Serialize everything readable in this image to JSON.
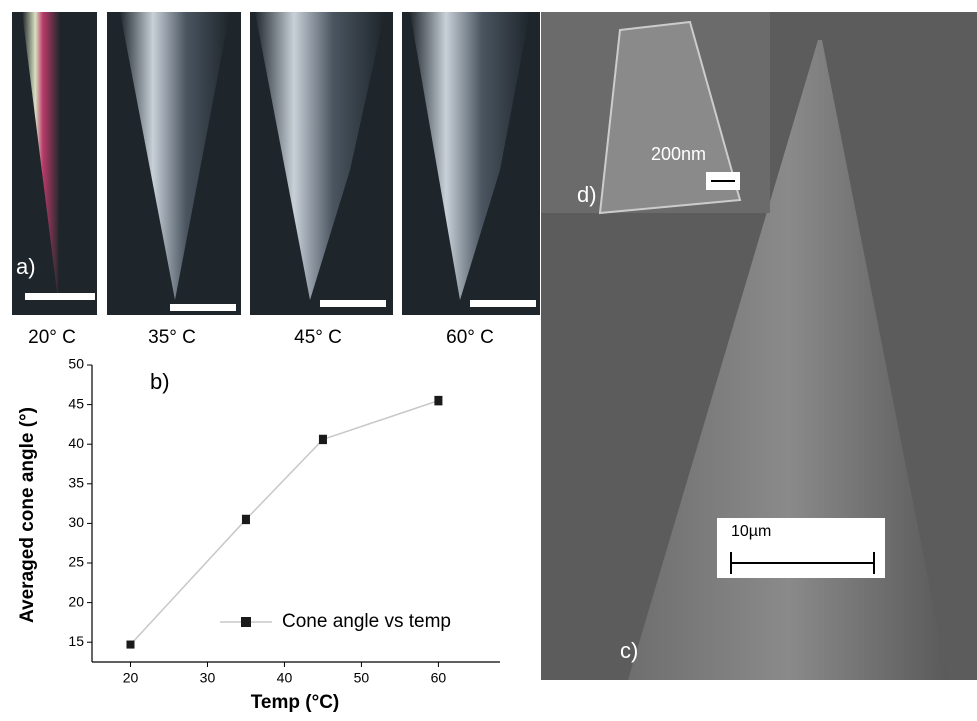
{
  "figure": {
    "panel_a": {
      "label": "a)",
      "temps": [
        "20° C",
        "35° C",
        "45° C",
        "60° C"
      ]
    },
    "panel_c": {
      "label": "c)",
      "scale": "10µm"
    },
    "panel_d": {
      "label": "d)",
      "scale": "200nm"
    }
  },
  "chart_data": {
    "type": "line",
    "panel_label": "b)",
    "x_label": "Temp (°C)",
    "y_label": "Averaged cone angle (°)",
    "x": [
      20,
      35,
      45,
      60
    ],
    "series": [
      {
        "name": "Cone angle vs temp",
        "color": "#1a1a1a",
        "line_color": "#c8c8c8",
        "values": [
          14.7,
          30.5,
          40.6,
          45.5
        ],
        "errors": [
          0.4,
          0.5,
          0.5,
          0.5
        ]
      }
    ],
    "xlim": [
      15,
      68
    ],
    "ylim": [
      12.5,
      50
    ],
    "xticks": [
      20,
      30,
      40,
      50,
      60
    ],
    "yticks": [
      15,
      20,
      25,
      30,
      35,
      40,
      45,
      50
    ],
    "legend": "lower-right"
  }
}
